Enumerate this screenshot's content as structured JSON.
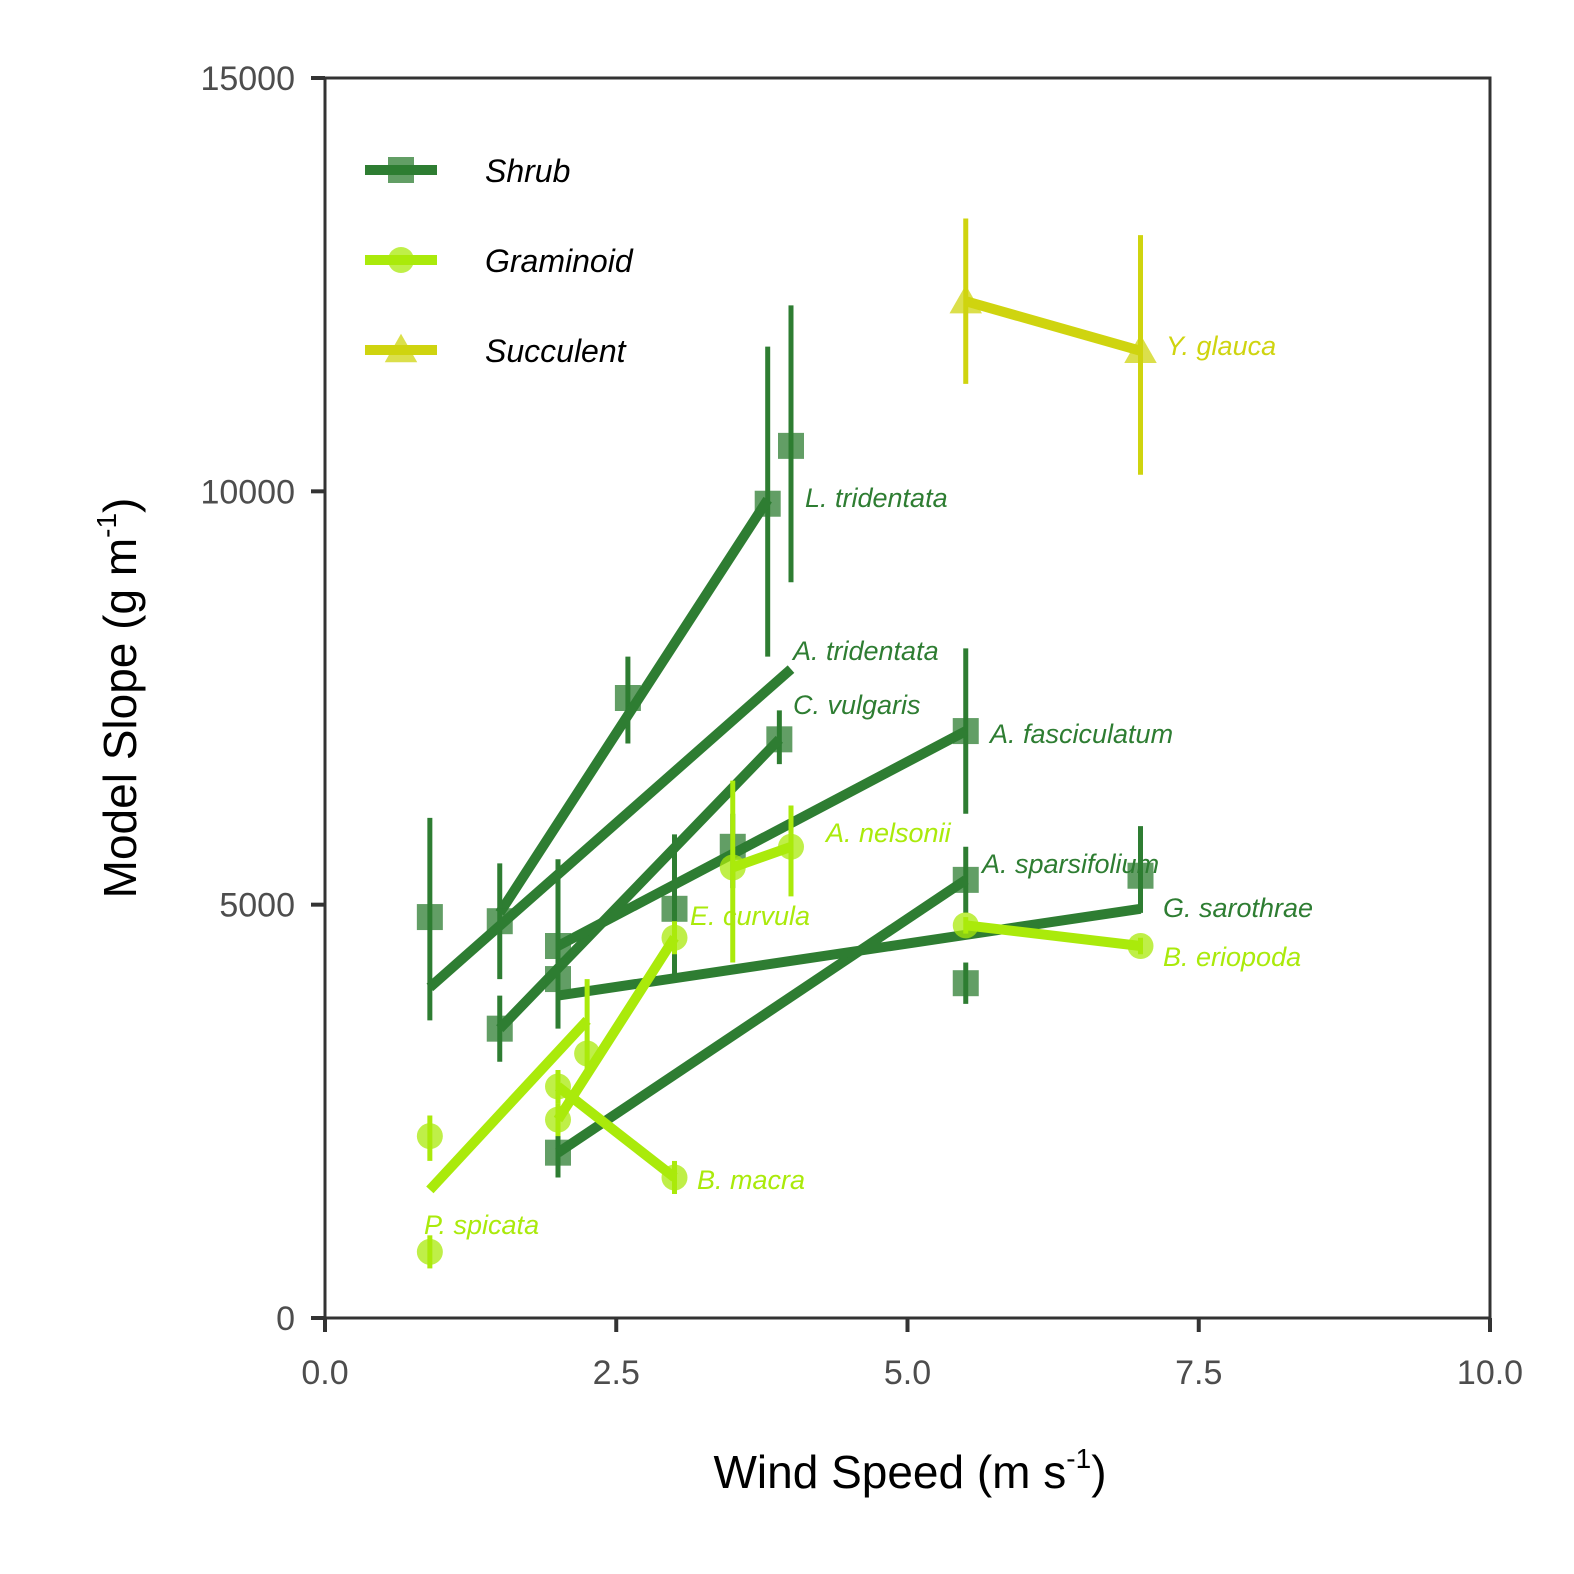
{
  "chart_data": {
    "type": "scatter",
    "xlabel": "Wind Speed (m s",
    "xlabel_sup": "-1",
    "xlabel_end": ")",
    "ylabel": "Model Slope (g m",
    "ylabel_sup": "-1",
    "ylabel_end": ")",
    "xlim": [
      0,
      10
    ],
    "ylim": [
      0,
      15000
    ],
    "x_ticks": [
      "0.0",
      "2.5",
      "5.0",
      "7.5",
      "10.0"
    ],
    "x_tick_values": [
      0,
      2.5,
      5,
      7.5,
      10
    ],
    "y_ticks": [
      "0",
      "5000",
      "10000",
      "15000"
    ],
    "y_tick_values": [
      0,
      5000,
      10000,
      15000
    ],
    "grid": false,
    "legend_position": "top-left",
    "legend": [
      {
        "name": "Shrub",
        "marker": "square",
        "color": "#2e7d32"
      },
      {
        "name": "Graminoid",
        "marker": "circle",
        "color": "#aaea0b"
      },
      {
        "name": "Succulent",
        "marker": "triangle",
        "color": "#cfd40f"
      }
    ],
    "colors": {
      "Shrub": "#2e7d32",
      "Graminoid": "#aaea0b",
      "Succulent": "#cfd40f"
    },
    "species": [
      {
        "name": "L. tridentata",
        "group": "Shrub",
        "fit": [
          [
            1.5,
            4900
          ],
          [
            3.8,
            9900
          ]
        ],
        "points": [
          {
            "x": 2.6,
            "y": 7500,
            "lo": 6950,
            "hi": 8000
          },
          {
            "x": 3.8,
            "y": 9850,
            "lo": 8000,
            "hi": 11750
          },
          {
            "x": 4.0,
            "y": 10550,
            "lo": 8900,
            "hi": 12250
          }
        ]
      },
      {
        "name": "A. tridentata",
        "group": "Shrub",
        "fit": [
          [
            0.9,
            4000
          ],
          [
            4.0,
            7850
          ]
        ],
        "points": [
          {
            "x": 0.9,
            "y": 4850,
            "lo": 3600,
            "hi": 6050
          },
          {
            "x": 1.5,
            "y": 4800,
            "lo": 4100,
            "hi": 5500
          }
        ]
      },
      {
        "name": "C. vulgaris",
        "group": "Shrub",
        "fit": [
          [
            1.5,
            3500
          ],
          [
            3.9,
            7000
          ]
        ],
        "points": [
          {
            "x": 1.5,
            "y": 3500,
            "lo": 3100,
            "hi": 3900
          },
          {
            "x": 3.9,
            "y": 7000,
            "lo": 6700,
            "hi": 7350
          }
        ]
      },
      {
        "name": "A. fasciculatum",
        "group": "Shrub",
        "fit": [
          [
            2.0,
            4500
          ],
          [
            5.5,
            7100
          ]
        ],
        "points": [
          {
            "x": 2.0,
            "y": 4500,
            "lo": 3700,
            "hi": 5550
          },
          {
            "x": 5.5,
            "y": 7100,
            "lo": 6100,
            "hi": 8100
          }
        ]
      },
      {
        "name": "A. sparsifolium",
        "group": "Shrub",
        "fit": [
          [
            2.0,
            2000
          ],
          [
            5.5,
            5300
          ]
        ],
        "points": [
          {
            "x": 2.0,
            "y": 2000,
            "lo": 1700,
            "hi": 2400
          },
          {
            "x": 5.5,
            "y": 5300,
            "lo": 4900,
            "hi": 5700
          }
        ]
      },
      {
        "name": "G. sarothrae",
        "group": "Shrub",
        "fit": [
          [
            2.0,
            3900
          ],
          [
            7.0,
            4950
          ]
        ],
        "points": [
          {
            "x": 2.0,
            "y": 4100,
            "lo": 3500,
            "hi": 4800
          },
          {
            "x": 3.0,
            "y": 4950,
            "lo": 4100,
            "hi": 5850
          },
          {
            "x": 3.5,
            "y": 5700,
            "lo": 5200,
            "hi": 6100
          },
          {
            "x": 5.5,
            "y": 4050,
            "lo": 3800,
            "hi": 4300
          },
          {
            "x": 7.0,
            "y": 5350,
            "lo": 4900,
            "hi": 5950
          }
        ]
      },
      {
        "name": "A. nelsonii",
        "group": "Graminoid",
        "fit": [
          [
            3.5,
            5450
          ],
          [
            4.0,
            5700
          ]
        ],
        "points": [
          {
            "x": 3.5,
            "y": 5450,
            "lo": 4300,
            "hi": 6500
          },
          {
            "x": 4.0,
            "y": 5700,
            "lo": 5100,
            "hi": 6200
          }
        ]
      },
      {
        "name": "E. curvula",
        "group": "Graminoid",
        "fit": [
          [
            2.0,
            2400
          ],
          [
            3.0,
            4600
          ]
        ],
        "points": [
          {
            "x": 2.0,
            "y": 2400,
            "lo": 2200,
            "hi": 2600
          },
          {
            "x": 2.25,
            "y": 3200,
            "lo": 3000,
            "hi": 4100
          },
          {
            "x": 3.0,
            "y": 4600,
            "lo": 4400,
            "hi": 4800
          }
        ]
      },
      {
        "name": "B. macra",
        "group": "Graminoid",
        "fit": [
          [
            2.0,
            2800
          ],
          [
            3.0,
            1700
          ]
        ],
        "points": [
          {
            "x": 2.0,
            "y": 2800,
            "lo": 2600,
            "hi": 3000
          },
          {
            "x": 3.0,
            "y": 1700,
            "lo": 1500,
            "hi": 1900
          }
        ]
      },
      {
        "name": "P. spicata",
        "group": "Graminoid",
        "fit": [
          [
            0.9,
            1550
          ],
          [
            2.25,
            3600
          ]
        ],
        "points": [
          {
            "x": 0.9,
            "y": 2200,
            "lo": 1900,
            "hi": 2450
          },
          {
            "x": 0.9,
            "y": 800,
            "lo": 600,
            "hi": 1000
          }
        ]
      },
      {
        "name": "B. eriopoda",
        "group": "Graminoid",
        "fit": [
          [
            5.5,
            4750
          ],
          [
            7.0,
            4500
          ]
        ],
        "points": [
          {
            "x": 5.5,
            "y": 4750,
            "lo": 4650,
            "hi": 4850
          },
          {
            "x": 7.0,
            "y": 4500,
            "lo": 4400,
            "hi": 4600
          }
        ]
      },
      {
        "name": "Y. glauca",
        "group": "Succulent",
        "fit": [
          [
            5.5,
            12300
          ],
          [
            7.0,
            11700
          ]
        ],
        "points": [
          {
            "x": 5.5,
            "y": 12300,
            "lo": 11300,
            "hi": 13300
          },
          {
            "x": 7.0,
            "y": 11700,
            "lo": 10200,
            "hi": 13100
          }
        ]
      }
    ]
  }
}
